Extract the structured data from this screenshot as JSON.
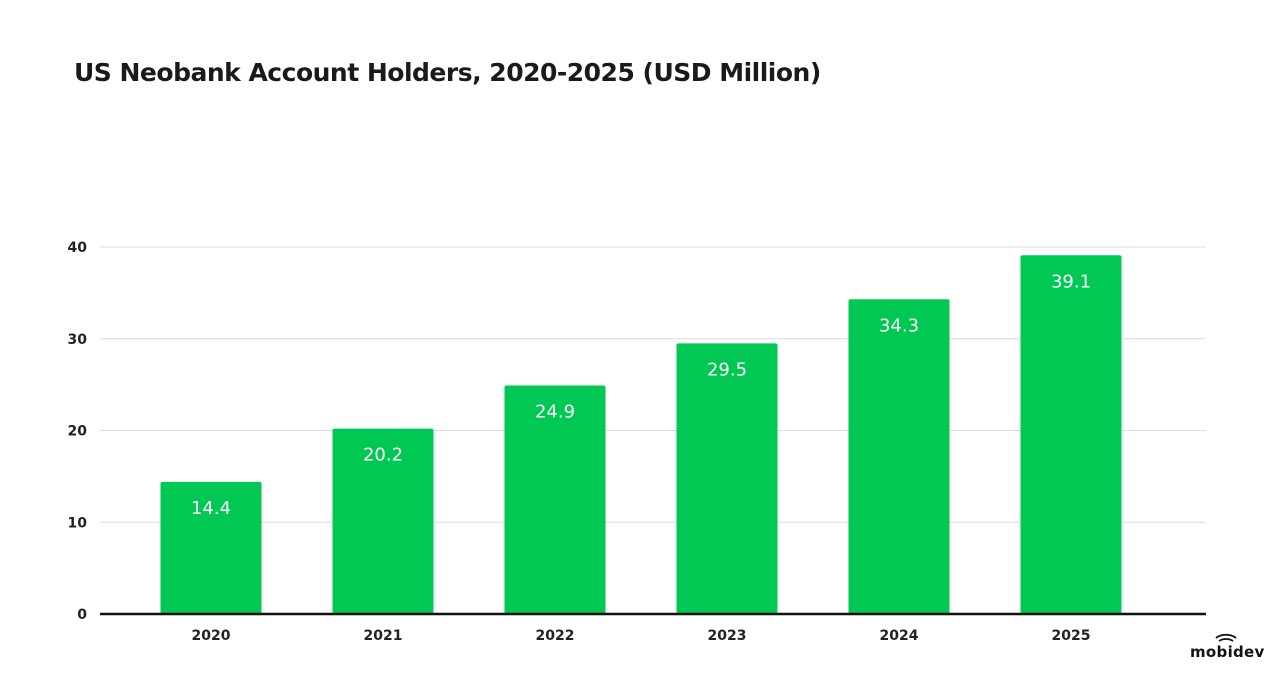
{
  "chart_data": {
    "type": "bar",
    "title": "US Neobank Account Holders, 2020-2025 (USD Million)",
    "categories": [
      "2020",
      "2021",
      "2022",
      "2023",
      "2024",
      "2025"
    ],
    "values": [
      14.4,
      20.2,
      24.9,
      29.5,
      34.3,
      39.1
    ],
    "data_labels": [
      "14.4",
      "20.2",
      "24.9",
      "29.5",
      "34.3",
      "39.1"
    ],
    "xlabel": "",
    "ylabel": "",
    "ylim": [
      0,
      40
    ],
    "yticks": [
      "0",
      "10",
      "20",
      "30",
      "40"
    ],
    "grid": true,
    "bar_color": "#00c853",
    "label_color": "#ffffff"
  },
  "brand": {
    "logo_text": "mobidev"
  }
}
